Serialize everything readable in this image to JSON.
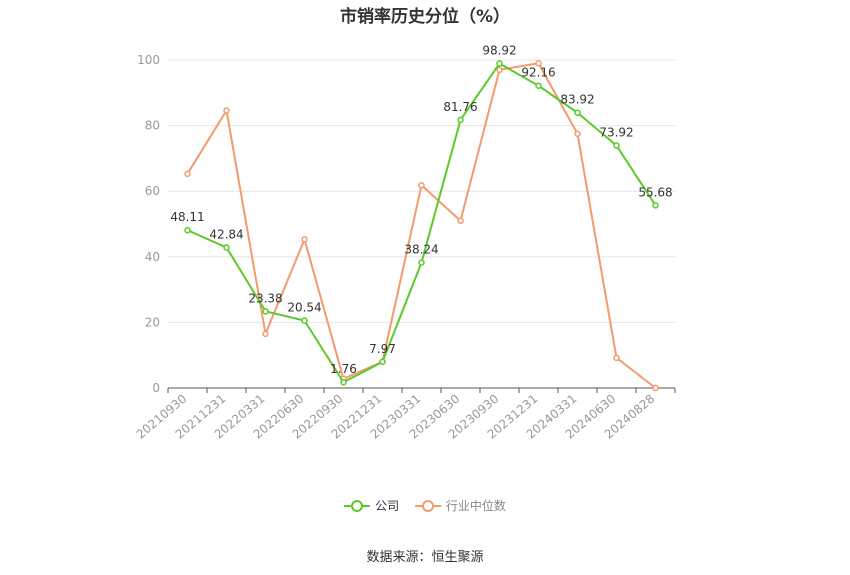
{
  "chart_data": {
    "type": "line",
    "title": "市销率历史分位（%）",
    "categories": [
      "20210930",
      "20211231",
      "20220331",
      "20220630",
      "20220930",
      "20221231",
      "20230331",
      "20230630",
      "20230930",
      "20231231",
      "20240331",
      "20240630",
      "20240828"
    ],
    "ylim": [
      0,
      100
    ],
    "yticks": [
      0,
      20,
      40,
      60,
      80,
      100
    ],
    "grid": true,
    "legend_position": "bottom",
    "series": [
      {
        "name": "公司",
        "color": "#5cc92a",
        "values": [
          48.11,
          42.84,
          23.38,
          20.54,
          1.76,
          7.97,
          38.24,
          81.76,
          98.92,
          92.16,
          83.92,
          73.92,
          55.68
        ],
        "labels": [
          "48.11",
          "42.84",
          "23.38",
          "20.54",
          "1.76",
          "7.97",
          "38.24",
          "81.76",
          "98.92",
          "92.16",
          "83.92",
          "73.92",
          "55.68"
        ]
      },
      {
        "name": "行业中位数",
        "color": "#f39a6e",
        "values": [
          65.3,
          84.6,
          16.5,
          45.3,
          2.8,
          8.0,
          61.8,
          51.0,
          97.0,
          99.0,
          77.5,
          9.2,
          0.0
        ]
      }
    ]
  },
  "legend": {
    "company": "公司",
    "industry": "行业中位数"
  },
  "source": "数据来源：恒生聚源"
}
